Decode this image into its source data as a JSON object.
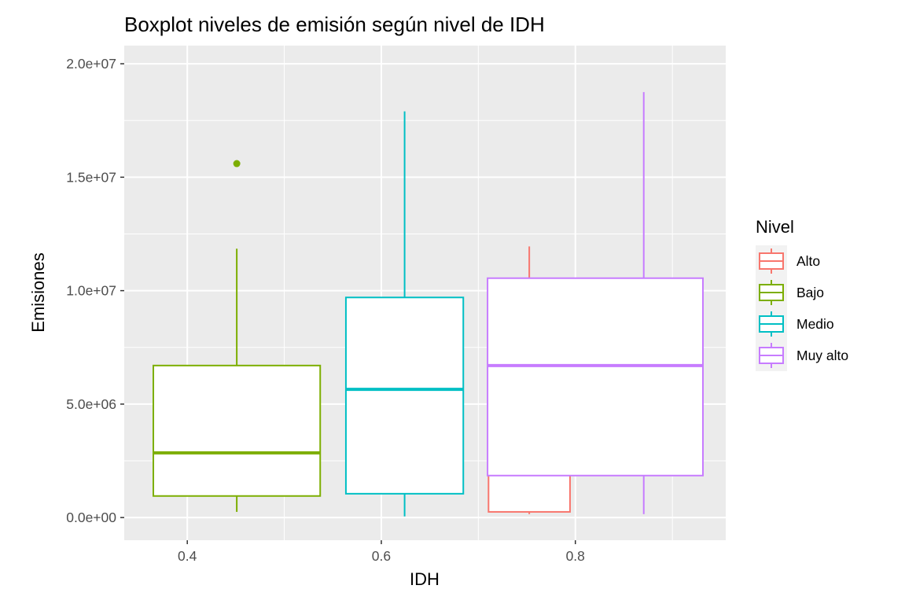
{
  "chart_data": {
    "type": "boxplot",
    "title": "Boxplot niveles de emisión según nivel de IDH",
    "xlabel": "IDH",
    "ylabel": "Emisiones",
    "xlim": [
      0.335,
      0.955
    ],
    "ylim": [
      -1000000,
      20800000
    ],
    "x_ticks": [
      0.4,
      0.6,
      0.8
    ],
    "x_tick_labels": [
      "0.4",
      "0.6",
      "0.8"
    ],
    "y_ticks": [
      0,
      5000000,
      10000000,
      15000000,
      20000000
    ],
    "y_tick_labels": [
      "0.0e+00",
      "5.0e+06",
      "1.0e+07",
      "1.5e+07",
      "2.0e+07"
    ],
    "grid": true,
    "legend": {
      "title": "Nivel",
      "position": "right",
      "entries": [
        "Alto",
        "Bajo",
        "Medio",
        "Muy alto"
      ]
    },
    "series": [
      {
        "name": "Alto",
        "color": "#F8766D",
        "x_min": 0.7105,
        "x_max": 0.7945,
        "x_center": 0.7525,
        "whisker_low": 150000,
        "q1": 250000,
        "median": 2000000,
        "q3": 6250000,
        "whisker_high": 11950000,
        "outliers": []
      },
      {
        "name": "Bajo",
        "color": "#7CAE00",
        "x_min": 0.365,
        "x_max": 0.537,
        "x_center": 0.451,
        "whisker_low": 250000,
        "q1": 950000,
        "median": 2850000,
        "q3": 6700000,
        "whisker_high": 11850000,
        "outliers": [
          15600000
        ]
      },
      {
        "name": "Medio",
        "color": "#00BFC4",
        "x_min": 0.5635,
        "x_max": 0.6845,
        "x_center": 0.624,
        "whisker_low": 50000,
        "q1": 1050000,
        "median": 5650000,
        "q3": 9700000,
        "whisker_high": 17900000,
        "outliers": []
      },
      {
        "name": "Muy alto",
        "color": "#C77CFF",
        "x_min": 0.7095,
        "x_max": 0.9315,
        "x_center": 0.8705,
        "whisker_low": 150000,
        "q1": 1850000,
        "median": 6700000,
        "q3": 10550000,
        "whisker_high": 18750000,
        "outliers": []
      }
    ]
  }
}
